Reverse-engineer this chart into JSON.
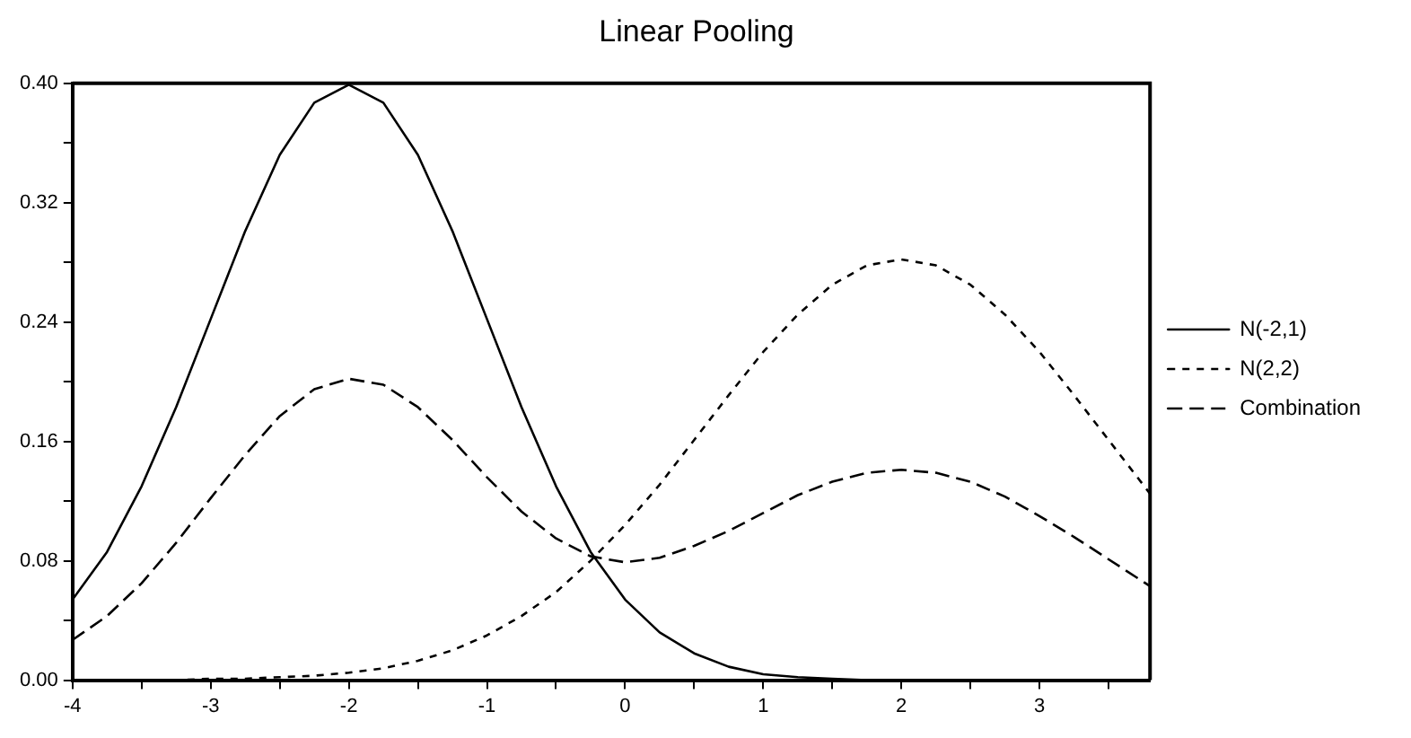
{
  "chart_data": {
    "type": "line",
    "title": "Linear Pooling",
    "x": [
      -4,
      -3.75,
      -3.5,
      -3.25,
      -3,
      -2.75,
      -2.5,
      -2.25,
      -2,
      -1.75,
      -1.5,
      -1.25,
      -1,
      -0.75,
      -0.5,
      -0.25,
      0,
      0.25,
      0.5,
      0.75,
      1,
      1.25,
      1.5,
      1.75,
      2,
      2.25,
      2.5,
      2.75,
      3,
      3.25,
      3.5,
      3.75,
      3.8
    ],
    "series": [
      {
        "name": "N(-2,1)",
        "color": "#000000",
        "line_style": "solid",
        "values": [
          0.054,
          0.086,
          0.13,
          0.183,
          0.242,
          0.301,
          0.352,
          0.387,
          0.399,
          0.387,
          0.352,
          0.301,
          0.242,
          0.183,
          0.13,
          0.086,
          0.054,
          0.032,
          0.018,
          0.009,
          0.004,
          0.002,
          0.001,
          0,
          0,
          0,
          0,
          0,
          0,
          0,
          0,
          0,
          0
        ]
      },
      {
        "name": "N(2,2)",
        "color": "#000000",
        "line_style": "dashed",
        "values": [
          0,
          0,
          0,
          0,
          0.001,
          0.001,
          0.002,
          0.003,
          0.005,
          0.008,
          0.013,
          0.02,
          0.03,
          0.043,
          0.059,
          0.08,
          0.104,
          0.131,
          0.161,
          0.191,
          0.22,
          0.245,
          0.265,
          0.278,
          0.282,
          0.278,
          0.265,
          0.245,
          0.22,
          0.191,
          0.161,
          0.131,
          0.125
        ]
      },
      {
        "name": "Combination",
        "color": "#000000",
        "line_style": "dashed",
        "values": [
          0.027,
          0.043,
          0.065,
          0.092,
          0.122,
          0.151,
          0.177,
          0.195,
          0.202,
          0.198,
          0.183,
          0.161,
          0.136,
          0.113,
          0.095,
          0.083,
          0.079,
          0.082,
          0.09,
          0.1,
          0.112,
          0.124,
          0.133,
          0.139,
          0.141,
          0.139,
          0.133,
          0.123,
          0.11,
          0.096,
          0.081,
          0.066,
          0.063
        ]
      }
    ],
    "xlim": [
      -4,
      3.8
    ],
    "xticks": [
      -4,
      {
        "value": -3.5,
        "label": null
      },
      -3,
      {
        "value": -2.5,
        "label": null
      },
      -2,
      {
        "value": -1.5,
        "label": null
      },
      -1,
      {
        "value": -0.5,
        "label": null
      },
      0,
      {
        "value": 0.5,
        "label": null
      },
      1,
      {
        "value": 1.5,
        "label": null
      },
      2,
      {
        "value": 2.5,
        "label": null
      },
      3,
      {
        "value": 3.5,
        "label": null
      }
    ],
    "ylim": [
      0,
      0.4
    ],
    "yticks": [
      {
        "value": 0,
        "label": "0.00"
      },
      {
        "value": 0.04,
        "label": null
      },
      {
        "value": 0.08,
        "label": "0.08"
      },
      {
        "value": 0.12,
        "label": null
      },
      {
        "value": 0.16,
        "label": "0.16"
      },
      {
        "value": 0.2,
        "label": null
      },
      {
        "value": 0.24,
        "label": "0.24"
      },
      {
        "value": 0.28,
        "label": null
      },
      {
        "value": 0.32,
        "label": "0.32"
      },
      {
        "value": 0.36,
        "label": null
      },
      {
        "value": 0.4,
        "label": "0.40"
      }
    ],
    "grid": false,
    "legend": "right",
    "marker": "none"
  }
}
